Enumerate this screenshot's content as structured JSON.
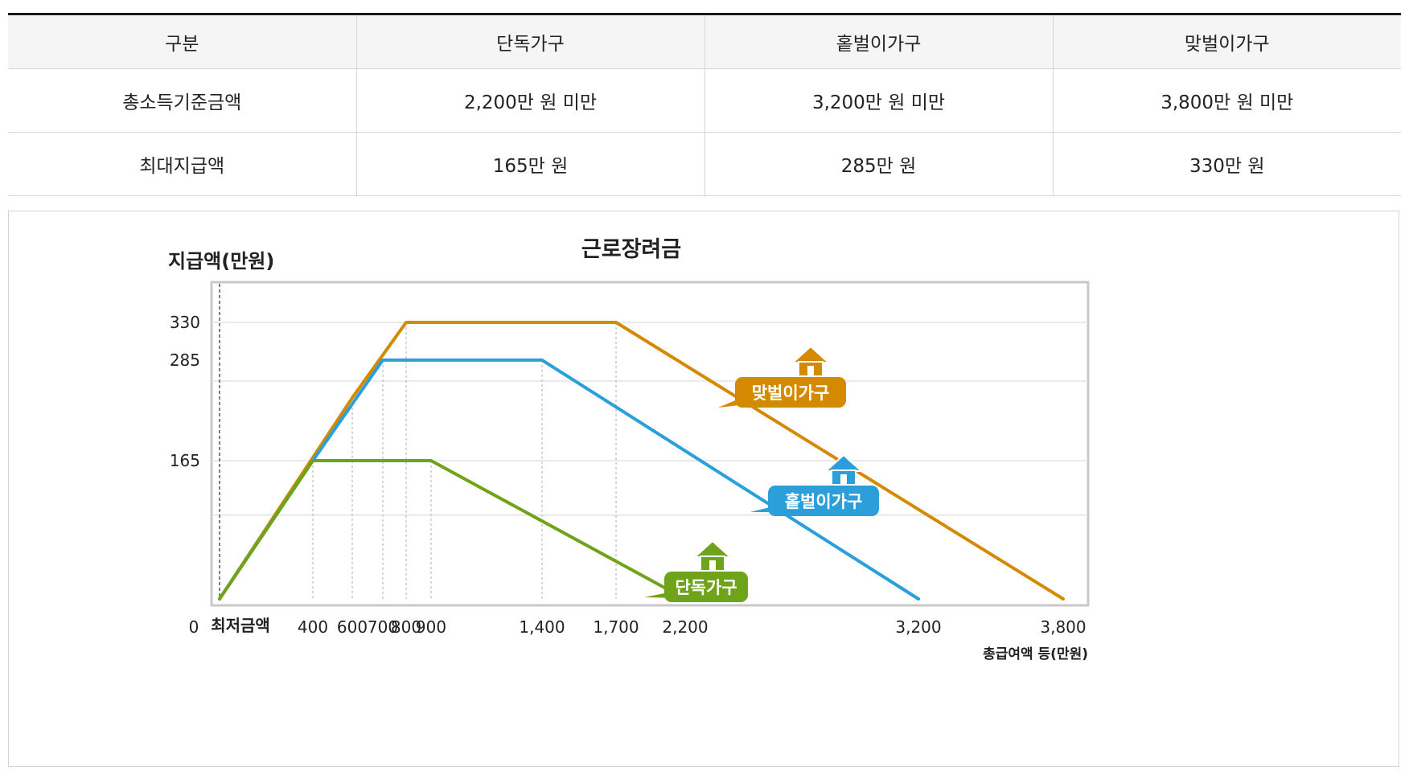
{
  "table": {
    "headers": [
      "구분",
      "단독가구",
      "홑벌이가구",
      "맞벌이가구"
    ],
    "rows": [
      [
        "총소득기준금액",
        "2,200만 원 미만",
        "3,200만 원 미만",
        "3,800만 원 미만"
      ],
      [
        "최대지급액",
        "165만 원",
        "285만 원",
        "330만 원"
      ]
    ]
  },
  "chart_data": {
    "type": "line",
    "title": "근로장려금",
    "ylabel": "지급액(만원)",
    "xlabel": "총급여액 등(만원)",
    "ylim": [
      0,
      385
    ],
    "x_ticks": [
      {
        "value": 400,
        "label": "400"
      },
      {
        "value": 600,
        "label": "600"
      },
      {
        "value": 700,
        "label": "700"
      },
      {
        "value": 800,
        "label": "800"
      },
      {
        "value": 900,
        "label": "900"
      },
      {
        "value": 1400,
        "label": "1,400"
      },
      {
        "value": 1700,
        "label": "1,700"
      },
      {
        "value": 2200,
        "label": "2,200"
      },
      {
        "value": 3200,
        "label": "3,200"
      },
      {
        "value": 3800,
        "label": "3,800"
      }
    ],
    "origin_label": "0",
    "min_label": "최저금액",
    "y_ticks": [
      165,
      285,
      330
    ],
    "gridlines": [
      330,
      260,
      165,
      100
    ],
    "series": [
      {
        "name": "맞벌이가구",
        "color": "#d48a00",
        "x": [
          0,
          600,
          800,
          1700,
          3800
        ],
        "y": [
          0,
          240,
          330,
          330,
          0
        ]
      },
      {
        "name": "홑벌이가구",
        "color": "#2b9fd9",
        "x": [
          0,
          400,
          700,
          1400,
          3200
        ],
        "y": [
          0,
          165,
          285,
          285,
          0
        ]
      },
      {
        "name": "단독가구",
        "color": "#6fa31a",
        "x": [
          0,
          400,
          900,
          2200
        ],
        "y": [
          0,
          165,
          165,
          0
        ]
      }
    ]
  },
  "colors": {
    "axis_border": "#c8c8c8",
    "grid": "#dddddd",
    "dotted": "#bbbbbb"
  }
}
